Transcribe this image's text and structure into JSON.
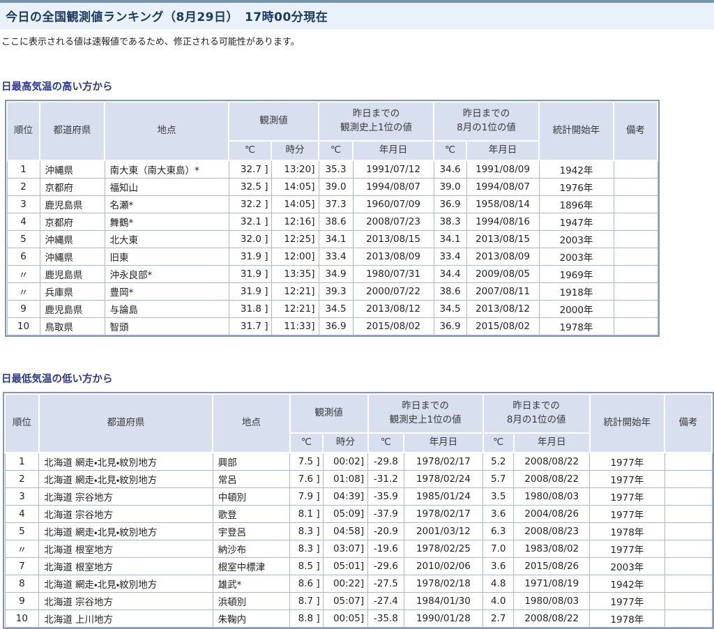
{
  "page": {
    "title": "今日の全国観測値ランキング（8月29日）　17時00分現在",
    "note": "ここに表示される値は速報値であるため、修正される可能性があります。"
  },
  "colors": {
    "title_bar_bg": "#e9f2fb",
    "title_bar_border": "#7893ae",
    "header_cell_bg": "#d8dfee",
    "table_border": "#8296b6",
    "grid_line": "#a9b7d4",
    "section_title": "#2d3a8f"
  },
  "columns": {
    "rank": "順位",
    "prefecture": "都道府県",
    "station": "地点",
    "observed": "観測値",
    "record_all": "昨日までの\n観測史上1位の値",
    "record_aug": "昨日までの\n8月の1位の値",
    "stats_start": "統計開始年",
    "remarks": "備考",
    "temp_unit": "℃",
    "time": "時分",
    "date": "年月日"
  },
  "tables": [
    {
      "title": "日最高気温の高い方から",
      "rows": [
        [
          "1",
          "沖縄県",
          "南大東（南大東島）*",
          "32.7 ]",
          "13:20]",
          "35.3",
          "1991/07/12",
          "34.6",
          "1991/08/09",
          "1942年",
          ""
        ],
        [
          "2",
          "京都府",
          "福知山",
          "32.5 ]",
          "14:05]",
          "39.0",
          "1994/08/07",
          "39.0",
          "1994/08/07",
          "1976年",
          ""
        ],
        [
          "3",
          "鹿児島県",
          "名瀬*",
          "32.2 ]",
          "14:05]",
          "37.3",
          "1960/07/09",
          "36.9",
          "1958/08/14",
          "1896年",
          ""
        ],
        [
          "4",
          "京都府",
          "舞鶴*",
          "32.1 ]",
          "12:16]",
          "38.6",
          "2008/07/23",
          "38.3",
          "1994/08/16",
          "1947年",
          ""
        ],
        [
          "5",
          "沖縄県",
          "北大東",
          "32.0 ]",
          "12:25]",
          "34.1",
          "2013/08/15",
          "34.1",
          "2013/08/15",
          "2003年",
          ""
        ],
        [
          "6",
          "沖縄県",
          "旧東",
          "31.9 ]",
          "12:00]",
          "33.4",
          "2013/08/09",
          "33.4",
          "2013/08/09",
          "2003年",
          ""
        ],
        [
          "〃",
          "鹿児島県",
          "沖永良部*",
          "31.9 ]",
          "13:35]",
          "34.9",
          "1980/07/31",
          "34.4",
          "2009/08/05",
          "1969年",
          ""
        ],
        [
          "〃",
          "兵庫県",
          "豊岡*",
          "31.9 ]",
          "12:21]",
          "39.3",
          "2000/07/22",
          "38.6",
          "2007/08/11",
          "1918年",
          ""
        ],
        [
          "9",
          "鹿児島県",
          "与論島",
          "31.8 ]",
          "12:21]",
          "34.5",
          "2013/08/12",
          "34.5",
          "2013/08/12",
          "2000年",
          ""
        ],
        [
          "10",
          "鳥取県",
          "智頭",
          "31.7 ]",
          "11:33]",
          "36.9",
          "2015/08/02",
          "36.9",
          "2015/08/02",
          "1978年",
          ""
        ]
      ]
    },
    {
      "title": "日最低気温の低い方から",
      "rows": [
        [
          "1",
          "北海道 網走・北見・紋別地方",
          "興部",
          "7.5 ]",
          "00:02]",
          "-29.8",
          "1978/02/17",
          "5.2",
          "2008/08/22",
          "1977年",
          ""
        ],
        [
          "2",
          "北海道 網走・北見・紋別地方",
          "常呂",
          "7.6 ]",
          "01:08]",
          "-31.2",
          "1978/02/24",
          "5.7",
          "2008/08/22",
          "1977年",
          ""
        ],
        [
          "3",
          "北海道 宗谷地方",
          "中頓別",
          "7.9 ]",
          "04:39]",
          "-35.9",
          "1985/01/24",
          "3.5",
          "1980/08/03",
          "1977年",
          ""
        ],
        [
          "4",
          "北海道 宗谷地方",
          "歌登",
          "8.1 ]",
          "05:09]",
          "-37.9",
          "1978/02/17",
          "3.6",
          "2004/08/26",
          "1977年",
          ""
        ],
        [
          "5",
          "北海道 網走・北見・紋別地方",
          "宇登呂",
          "8.3 ]",
          "04:58]",
          "-20.9",
          "2001/03/12",
          "6.3",
          "2008/08/23",
          "1978年",
          ""
        ],
        [
          "〃",
          "北海道 根室地方",
          "納沙布",
          "8.3 ]",
          "03:07]",
          "-19.6",
          "1978/02/25",
          "7.0",
          "1983/08/02",
          "1977年",
          ""
        ],
        [
          "7",
          "北海道 根室地方",
          "根室中標津",
          "8.5 ]",
          "05:01]",
          "-29.6",
          "2010/02/06",
          "3.6",
          "2015/08/26",
          "2003年",
          ""
        ],
        [
          "8",
          "北海道 網走・北見・紋別地方",
          "雄武*",
          "8.6 ]",
          "00:22]",
          "-27.5",
          "1978/02/18",
          "4.8",
          "1971/08/19",
          "1942年",
          ""
        ],
        [
          "9",
          "北海道 宗谷地方",
          "浜頓別",
          "8.7 ]",
          "05:07]",
          "-27.4",
          "1984/01/30",
          "4.0",
          "1980/08/03",
          "1977年",
          ""
        ],
        [
          "10",
          "北海道 上川地方",
          "朱鞠内",
          "8.8 ]",
          "00:05]",
          "-35.8",
          "1990/01/28",
          "2.7",
          "2008/08/22",
          "1978年",
          ""
        ]
      ]
    }
  ]
}
